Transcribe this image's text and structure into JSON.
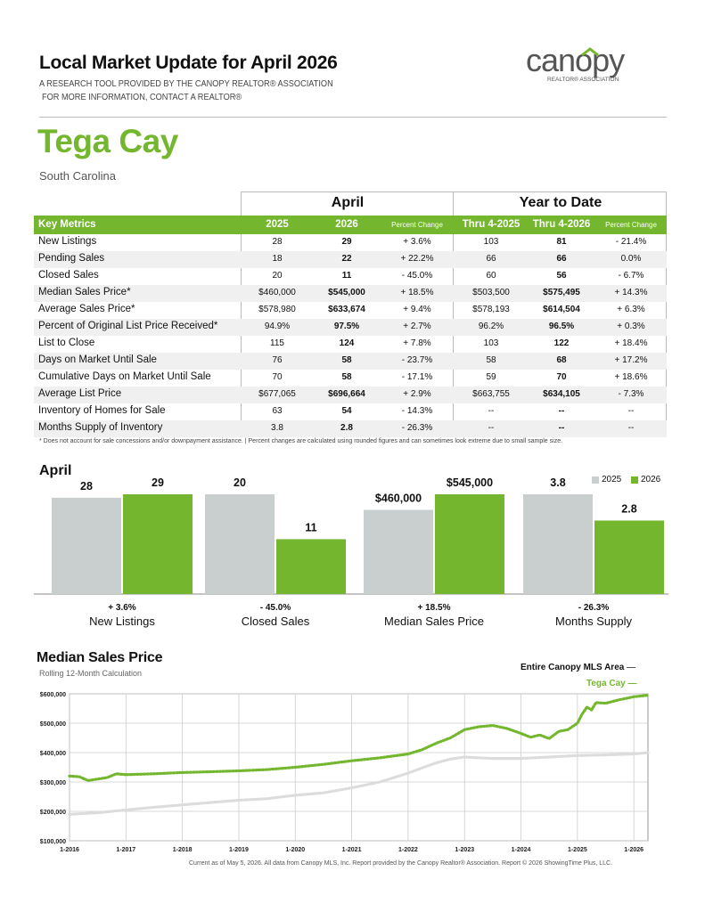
{
  "header": {
    "title": "Local Market Update for April 2026",
    "subtitle_line1": "A RESEARCH TOOL PROVIDED BY THE CANOPY REALTOR® ASSOCIATION",
    "subtitle_line2": "FOR MORE INFORMATION, CONTACT A REALTOR®",
    "logo_text": "canopy",
    "logo_sub": "REALTOR® ASSOCIATION"
  },
  "location": {
    "city": "Tega Cay",
    "state": "South Carolina"
  },
  "table": {
    "group_april": "April",
    "group_ytd": "Year to Date",
    "headers": [
      "Key Metrics",
      "2025",
      "2026",
      "Percent Change",
      "Thru 4-2025",
      "Thru 4-2026",
      "Percent Change"
    ],
    "rows": [
      [
        "New Listings",
        "28",
        "29",
        "+ 3.6%",
        "103",
        "81",
        "- 21.4%"
      ],
      [
        "Pending Sales",
        "18",
        "22",
        "+ 22.2%",
        "66",
        "66",
        "0.0%"
      ],
      [
        "Closed Sales",
        "20",
        "11",
        "- 45.0%",
        "60",
        "56",
        "- 6.7%"
      ],
      [
        "Median Sales Price*",
        "$460,000",
        "$545,000",
        "+ 18.5%",
        "$503,500",
        "$575,495",
        "+ 14.3%"
      ],
      [
        "Average Sales Price*",
        "$578,980",
        "$633,674",
        "+ 9.4%",
        "$578,193",
        "$614,504",
        "+ 6.3%"
      ],
      [
        "Percent of Original List Price Received*",
        "94.9%",
        "97.5%",
        "+ 2.7%",
        "96.2%",
        "96.5%",
        "+ 0.3%"
      ],
      [
        "List to Close",
        "115",
        "124",
        "+ 7.8%",
        "103",
        "122",
        "+ 18.4%"
      ],
      [
        "Days on Market Until Sale",
        "76",
        "58",
        "- 23.7%",
        "58",
        "68",
        "+ 17.2%"
      ],
      [
        "Cumulative Days on Market Until Sale",
        "70",
        "58",
        "- 17.1%",
        "59",
        "70",
        "+ 18.6%"
      ],
      [
        "Average List Price",
        "$677,065",
        "$696,664",
        "+ 2.9%",
        "$663,755",
        "$634,105",
        "- 7.3%"
      ],
      [
        "Inventory of Homes for Sale",
        "63",
        "54",
        "- 14.3%",
        "--",
        "--",
        "--"
      ],
      [
        "Months Supply of Inventory",
        "3.8",
        "2.8",
        "- 26.3%",
        "--",
        "--",
        "--"
      ]
    ],
    "footnote": "* Does not account for sale concessions and/or downpayment assistance.  |  Percent changes are calculated using rounded figures and can sometimes look extreme due to small sample size."
  },
  "colors": {
    "green": "#74b72e",
    "gray": "#c9cfcf",
    "gray_line": "#dcdcdc"
  },
  "bar_section": {
    "title": "April",
    "legend": [
      "2025",
      "2026"
    ]
  },
  "chart_data": [
    {
      "type": "bar",
      "title": "April",
      "series": [
        {
          "name": "2025"
        },
        {
          "name": "2026"
        }
      ],
      "groups": [
        {
          "category": "New Listings",
          "values": [
            28,
            29
          ],
          "labels": [
            "28",
            "29"
          ],
          "change": "+ 3.6%"
        },
        {
          "category": "Closed Sales",
          "values": [
            20,
            11
          ],
          "labels": [
            "20",
            "11"
          ],
          "change": "- 45.0%"
        },
        {
          "category": "Median Sales Price",
          "values": [
            460000,
            545000
          ],
          "labels": [
            "$460,000",
            "$545,000"
          ],
          "change": "+ 18.5%"
        },
        {
          "category": "Months Supply",
          "values": [
            3.8,
            2.8
          ],
          "labels": [
            "3.8",
            "2.8"
          ],
          "change": "- 26.3%"
        }
      ]
    },
    {
      "type": "line",
      "title": "Median Sales Price",
      "subtitle": "Rolling 12-Month Calculation",
      "x_ticks": [
        "1-2016",
        "1-2017",
        "1-2018",
        "1-2019",
        "1-2020",
        "1-2021",
        "1-2022",
        "1-2023",
        "1-2024",
        "1-2025",
        "1-2026"
      ],
      "y_ticks": [
        "$100,000",
        "$200,000",
        "$300,000",
        "$400,000",
        "$500,000",
        "$600,000"
      ],
      "ylim": [
        100000,
        600000
      ],
      "grid": true,
      "series": [
        {
          "name": "Entire Canopy MLS Area",
          "x": [
            2016.0,
            2016.5,
            2017.0,
            2017.5,
            2018.0,
            2018.5,
            2019.0,
            2019.5,
            2020.0,
            2020.5,
            2021.0,
            2021.5,
            2022.0,
            2022.25,
            2022.5,
            2022.75,
            2023.0,
            2023.25,
            2023.5,
            2024.0,
            2024.5,
            2025.0,
            2025.5,
            2026.0,
            2026.25
          ],
          "values": [
            190000,
            195000,
            205000,
            214000,
            222000,
            230000,
            238000,
            243000,
            255000,
            263000,
            280000,
            300000,
            330000,
            348000,
            365000,
            378000,
            385000,
            382000,
            380000,
            380000,
            385000,
            390000,
            392000,
            395000,
            400000
          ]
        },
        {
          "name": "Tega Cay",
          "x": [
            2016.0,
            2016.17,
            2016.33,
            2016.5,
            2016.67,
            2016.83,
            2017.0,
            2017.5,
            2018.0,
            2018.5,
            2019.0,
            2019.5,
            2020.0,
            2020.5,
            2021.0,
            2021.5,
            2022.0,
            2022.25,
            2022.5,
            2022.75,
            2023.0,
            2023.25,
            2023.5,
            2023.75,
            2024.0,
            2024.17,
            2024.33,
            2024.5,
            2024.67,
            2024.83,
            2025.0,
            2025.08,
            2025.17,
            2025.25,
            2025.33,
            2025.5,
            2025.75,
            2026.0,
            2026.25
          ],
          "values": [
            320000,
            318000,
            305000,
            310000,
            315000,
            328000,
            325000,
            328000,
            332000,
            335000,
            338000,
            342000,
            350000,
            360000,
            372000,
            382000,
            395000,
            410000,
            432000,
            450000,
            478000,
            488000,
            492000,
            482000,
            465000,
            452000,
            460000,
            448000,
            472000,
            478000,
            500000,
            530000,
            555000,
            545000,
            570000,
            568000,
            580000,
            590000,
            595000
          ]
        }
      ]
    }
  ],
  "line_section": {
    "title": "Median Sales Price",
    "subtitle": "Rolling 12-Month Calculation",
    "legend_mls": "Entire Canopy MLS Area",
    "legend_local": "Tega Cay"
  },
  "footer": "Current as of May 5, 2026. All data from Canopy MLS, Inc. Report provided by the Canopy Realtor® Association. Report © 2026 ShowingTime Plus, LLC."
}
